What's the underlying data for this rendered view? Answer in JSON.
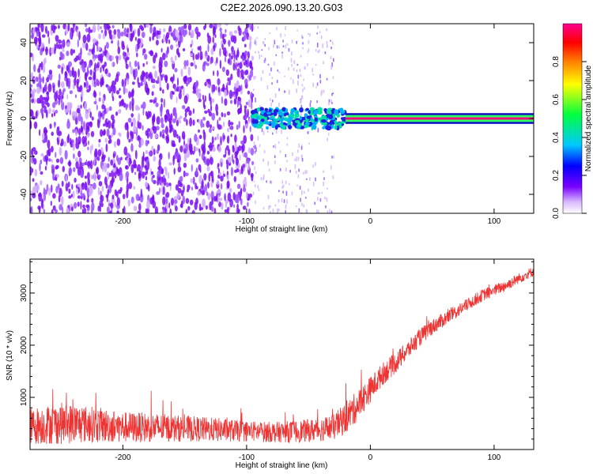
{
  "title": "C2E2.2026.090.13.20.G03",
  "chart_data": [
    {
      "type": "heatmap",
      "name": "spectrogram",
      "xlabel": "Height of straight line (km)",
      "ylabel": "Frequency (Hz)",
      "xlim": [
        -275,
        132
      ],
      "ylim": [
        -50,
        50
      ],
      "xticks": [
        -200,
        -100,
        0,
        100
      ],
      "yticks": [
        -40,
        -20,
        0,
        20,
        40
      ],
      "colorbar": {
        "label": "Normalized spectral amplitude",
        "range": [
          0,
          1
        ],
        "ticks": [
          0.0,
          0.2,
          0.4,
          0.6,
          0.8
        ],
        "colormap": [
          "#ffffff",
          "#7a00ff",
          "#0000ff",
          "#00c8ff",
          "#00ff40",
          "#ffff00",
          "#ff8000",
          "#ff0000",
          "#ff0080"
        ]
      },
      "regions": [
        {
          "x_range": [
            -275,
            -95
          ],
          "freq_range": [
            -50,
            50
          ],
          "amplitude": 0.08,
          "pattern": "scattered noise"
        },
        {
          "x_range": [
            -95,
            -30
          ],
          "freq_range": [
            -50,
            50
          ],
          "amplitude": 0.03,
          "pattern": "sparse noise"
        },
        {
          "x_range": [
            -95,
            -20
          ],
          "freq_range": [
            -5,
            5
          ],
          "amplitude": 0.45,
          "pattern": "broadening carrier"
        },
        {
          "x_range": [
            -20,
            132
          ],
          "freq_range": [
            -2,
            2
          ],
          "amplitude": 0.95,
          "pattern": "strong carrier line"
        }
      ]
    },
    {
      "type": "line",
      "name": "snr",
      "xlabel": "Height of straight line (km)",
      "ylabel": "SNR (10 * v/v)",
      "xlim": [
        -275,
        132
      ],
      "ylim": [
        0,
        3650
      ],
      "xticks": [
        -200,
        -100,
        0,
        100
      ],
      "yticks": [
        1000,
        2000,
        3000
      ],
      "color": "#ee3333",
      "series": [
        {
          "name": "SNR",
          "x": [
            -275,
            -250,
            -225,
            -200,
            -175,
            -150,
            -125,
            -100,
            -75,
            -50,
            -30,
            -20,
            -10,
            0,
            10,
            20,
            30,
            40,
            50,
            60,
            70,
            80,
            90,
            100,
            110,
            120,
            132
          ],
          "y": [
            450,
            500,
            480,
            430,
            420,
            400,
            380,
            350,
            330,
            360,
            420,
            600,
            850,
            1150,
            1450,
            1650,
            1900,
            2150,
            2350,
            2500,
            2650,
            2800,
            2950,
            3050,
            3150,
            3280,
            3420
          ],
          "spread": [
            350,
            400,
            350,
            300,
            280,
            250,
            230,
            200,
            200,
            220,
            250,
            300,
            300,
            250,
            220,
            200,
            180,
            170,
            150,
            140,
            130,
            120,
            120,
            110,
            110,
            100,
            100
          ]
        }
      ]
    }
  ]
}
